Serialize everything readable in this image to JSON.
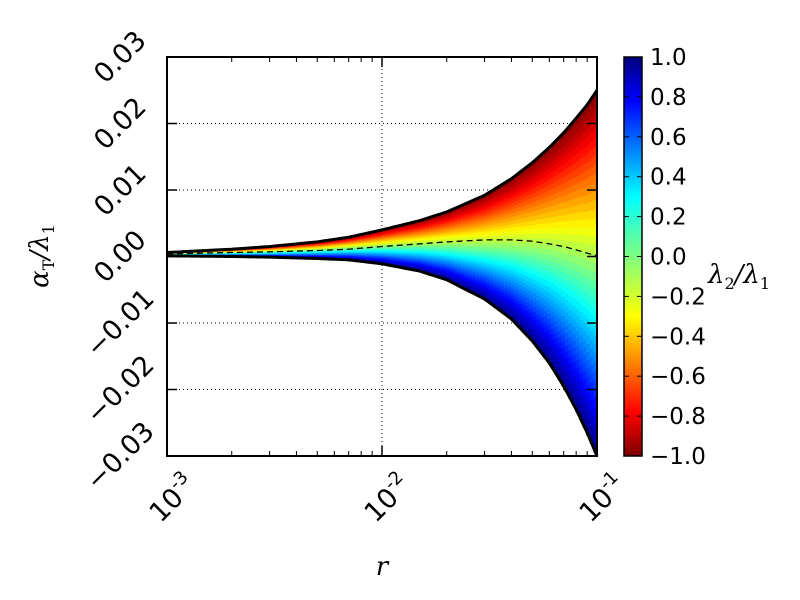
{
  "chart_data": {
    "type": "area",
    "x_scale": "log",
    "xlim": [
      0.001,
      0.1
    ],
    "ylim": [
      -0.03,
      0.03
    ],
    "grid": true,
    "xlabel": "r",
    "ylabel": {
      "main": "α",
      "sub1": "T",
      "slash": "/λ",
      "sub2": "1"
    },
    "x_ticks": [
      {
        "value": 0.001,
        "base": "10",
        "exp": "-3"
      },
      {
        "value": 0.01,
        "base": "10",
        "exp": "-2"
      },
      {
        "value": 0.1,
        "base": "10",
        "exp": "-1"
      }
    ],
    "y_ticks": [
      {
        "value": -0.03,
        "label": "−0.03"
      },
      {
        "value": -0.02,
        "label": "−0.02"
      },
      {
        "value": -0.01,
        "label": "−0.01"
      },
      {
        "value": 0.0,
        "label": "0.00"
      },
      {
        "value": 0.01,
        "label": "0.01"
      },
      {
        "value": 0.02,
        "label": "0.02"
      },
      {
        "value": 0.03,
        "label": "0.03"
      }
    ],
    "series": [
      {
        "role": "upper-envelope",
        "x": [
          0.001,
          0.002,
          0.003,
          0.005,
          0.007,
          0.01,
          0.015,
          0.02,
          0.03,
          0.04,
          0.05,
          0.06,
          0.07,
          0.08,
          0.09,
          0.1
        ],
        "y": [
          0.0006,
          0.0011,
          0.0015,
          0.0022,
          0.0029,
          0.004,
          0.0054,
          0.0067,
          0.0092,
          0.0117,
          0.0141,
          0.0164,
          0.0186,
          0.0208,
          0.0228,
          0.025
        ]
      },
      {
        "role": "lower-envelope",
        "x": [
          0.001,
          0.002,
          0.003,
          0.005,
          0.007,
          0.01,
          0.015,
          0.02,
          0.03,
          0.04,
          0.05,
          0.06,
          0.07,
          0.08,
          0.09,
          0.1
        ],
        "y": [
          0.0001,
          0.0,
          -0.0001,
          -0.0003,
          -0.0005,
          -0.0011,
          -0.0022,
          -0.0035,
          -0.0064,
          -0.0094,
          -0.0127,
          -0.016,
          -0.0195,
          -0.023,
          -0.0265,
          -0.03
        ]
      },
      {
        "role": "dashed-middle",
        "x": [
          0.001,
          0.002,
          0.003,
          0.005,
          0.007,
          0.01,
          0.015,
          0.02,
          0.03,
          0.04,
          0.05,
          0.06,
          0.07,
          0.08,
          0.09,
          0.1
        ],
        "y": [
          0.0004,
          0.0006,
          0.0007,
          0.0009,
          0.0011,
          0.0015,
          0.0019,
          0.0022,
          0.0025,
          0.0025,
          0.0023,
          0.0019,
          0.0015,
          0.001,
          0.0005,
          0.0001
        ]
      }
    ],
    "colorbar": {
      "label": {
        "main": "λ",
        "sub1": "2",
        "slash": "/λ",
        "sub2": "1"
      },
      "range": [
        -1.0,
        1.0
      ],
      "colormap": "jet",
      "ticks": [
        "−1.0",
        "−0.8",
        "−0.6",
        "−0.4",
        "−0.2",
        "0.0",
        "0.2",
        "0.4",
        "0.6",
        "0.8",
        "1.0"
      ]
    }
  }
}
